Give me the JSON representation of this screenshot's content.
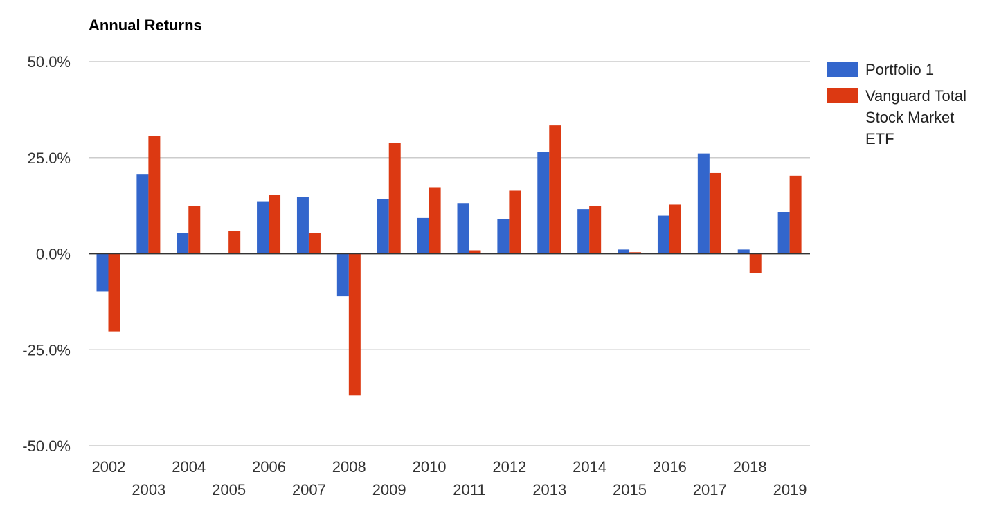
{
  "chart_data": {
    "type": "bar",
    "title": "Annual Returns",
    "xlabel": "",
    "ylabel": "",
    "ylim": [
      -50,
      50
    ],
    "yticks": [
      50,
      25,
      0,
      -25,
      -50
    ],
    "ytick_labels": [
      "50.0%",
      "25.0%",
      "0.0%",
      "-25.0%",
      "-50.0%"
    ],
    "grid": true,
    "legend_position": "right",
    "categories": [
      "2002",
      "2003",
      "2004",
      "2005",
      "2006",
      "2007",
      "2008",
      "2009",
      "2010",
      "2011",
      "2012",
      "2013",
      "2014",
      "2015",
      "2016",
      "2017",
      "2018",
      "2019"
    ],
    "series": [
      {
        "name": "Portfolio 1",
        "color": "#3366cc",
        "values": [
          -9.9,
          20.6,
          5.4,
          0.0,
          13.5,
          14.8,
          -11.1,
          14.2,
          9.3,
          13.2,
          9.0,
          26.4,
          11.6,
          1.1,
          9.9,
          26.1,
          1.1,
          10.9
        ]
      },
      {
        "name": "Vanguard Total Stock Market ETF",
        "legend_lines": [
          "Vanguard Total",
          "Stock Market",
          "ETF"
        ],
        "color": "#dc3912",
        "values": [
          -20.2,
          30.7,
          12.5,
          6.0,
          15.4,
          5.4,
          -36.9,
          28.8,
          17.3,
          0.9,
          16.4,
          33.4,
          12.5,
          0.4,
          12.8,
          21.0,
          -5.1,
          20.3
        ]
      }
    ]
  }
}
